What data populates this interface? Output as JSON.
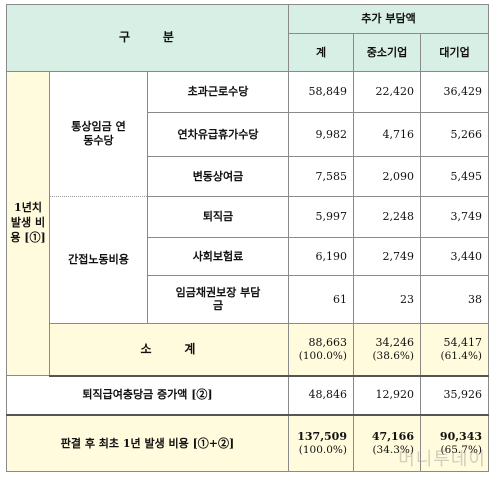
{
  "header": {
    "category": "구     분",
    "burden_title": "추가 부담액",
    "col_total": "계",
    "col_sme": "중소기업",
    "col_large": "대기업"
  },
  "group1": {
    "label": "1년치 발생 비용 [①]",
    "sub_a": {
      "label": "통상임금 연동수당",
      "rows": [
        {
          "item": "초과근로수당",
          "total": "58,849",
          "sme": "22,420",
          "large": "36,429"
        },
        {
          "item": "연차유급휴가수당",
          "total": "9,982",
          "sme": "4,716",
          "large": "5,266"
        },
        {
          "item": "변동상여금",
          "total": "7,585",
          "sme": "2,090",
          "large": "5,495"
        }
      ]
    },
    "sub_b": {
      "label": "간접노동비용",
      "rows": [
        {
          "item": "퇴직금",
          "total": "5,997",
          "sme": "2,248",
          "large": "3,749"
        },
        {
          "item": "사회보험료",
          "total": "6,190",
          "sme": "2,749",
          "large": "3,440"
        },
        {
          "item": "임금채권보장 부담금",
          "total": "61",
          "sme": "23",
          "large": "38"
        }
      ]
    },
    "subtotal": {
      "label": "소     계",
      "total": "88,663",
      "total_pct": "(100.0%)",
      "sme": "34,246",
      "sme_pct": "(38.6%)",
      "large": "54,417",
      "large_pct": "(61.4%)"
    }
  },
  "reserve": {
    "label": "퇴직급여충당금 증가액 [②]",
    "total": "48,846",
    "sme": "12,920",
    "large": "35,926"
  },
  "final": {
    "label": "판결 후 최초 1년 발생 비용 [①+②]",
    "total": "137,509",
    "total_pct": "(100.0%)",
    "sme": "47,166",
    "sme_pct": "(34.3%)",
    "large": "90,343",
    "large_pct": "(65.7%)"
  },
  "watermark": "머니투데이"
}
